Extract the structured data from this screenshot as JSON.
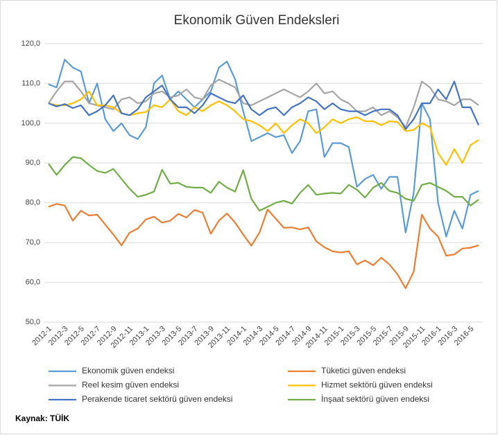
{
  "chart_data": {
    "type": "line",
    "title": "Ekonomik Güven Endeksleri",
    "source": "Kaynak: TÜİK",
    "categories": [
      "2012-1",
      null,
      "2012-3",
      null,
      "2012-5",
      null,
      "2012-7",
      null,
      "2012-9",
      null,
      "2012-11",
      null,
      "2013-1",
      null,
      "2013-3",
      null,
      "2013-5",
      null,
      "2013-7",
      null,
      "2013-9",
      null,
      "2013-11",
      null,
      "2014-1",
      null,
      "2014-3",
      null,
      "2014-5",
      null,
      "2014-7",
      null,
      "2014-9",
      null,
      "2014-11",
      null,
      "2015-1",
      null,
      "2015-3",
      null,
      "2015-5",
      null,
      "2015-7",
      null,
      "2015-9",
      null,
      "2015-11",
      null,
      "2016-1",
      null,
      "2016-3",
      null,
      "2016-5",
      null
    ],
    "ylim": [
      50,
      120
    ],
    "yticks": [
      {
        "value": 50,
        "label": "50,0"
      },
      {
        "value": 60,
        "label": "60,0"
      },
      {
        "value": 70,
        "label": "70,0"
      },
      {
        "value": 80,
        "label": "80,0"
      },
      {
        "value": 90,
        "label": "90,0"
      },
      {
        "value": 100,
        "label": "100,0"
      },
      {
        "value": 110,
        "label": "110,0"
      },
      {
        "value": 120,
        "label": "120,0"
      }
    ],
    "grid": true,
    "series": [
      {
        "name": "Ekonomik güven endeksi",
        "color": "#5b9bd5",
        "values": [
          109.8,
          109,
          116,
          114,
          113,
          105,
          110,
          101,
          98,
          100,
          97,
          96,
          99,
          110,
          112,
          106,
          108,
          106,
          104,
          106,
          108,
          114,
          115.5,
          111,
          103,
          95.5,
          96.5,
          97.5,
          96.5,
          97,
          92.5,
          95.5,
          103,
          103.5,
          91.5,
          95,
          95,
          94,
          84,
          86,
          87,
          83.5,
          86.5,
          86.5,
          72.5,
          82.5,
          105,
          101,
          80,
          71.5,
          78,
          73.5,
          82,
          83
        ]
      },
      {
        "name": "Tüketici güven endeksi",
        "color": "#ed7d31",
        "values": [
          79,
          79.7,
          79.3,
          75.5,
          78,
          76.8,
          77,
          74.5,
          72,
          69.3,
          72.5,
          73.5,
          75.8,
          76.5,
          75,
          75.5,
          77.2,
          76.3,
          78.2,
          77.5,
          72.2,
          75.5,
          77.3,
          75,
          72,
          69.2,
          72.5,
          78.3,
          76,
          73.7,
          73.8,
          73.3,
          73.8,
          70.3,
          68.8,
          67.8,
          67.5,
          67.8,
          64.5,
          65.5,
          64.3,
          66.2,
          64.5,
          62,
          58.5,
          62.7,
          77,
          73.5,
          71.5,
          66.7,
          67,
          68.5,
          68.7,
          69.3
        ]
      },
      {
        "name": "Reel kesim güven endeksi",
        "color": "#a5a5a5",
        "values": [
          105,
          108,
          110.5,
          110.5,
          108,
          105,
          104.5,
          104,
          103.5,
          106,
          106.5,
          105,
          105.5,
          107.5,
          108,
          106.5,
          107,
          108.5,
          106.5,
          106,
          109.5,
          111,
          110,
          109,
          105,
          104.5,
          105.5,
          106.5,
          107.5,
          108.5,
          107.5,
          106.5,
          108,
          110,
          107.5,
          108,
          106,
          105,
          103,
          103,
          104,
          102,
          103,
          101.5,
          99,
          104,
          110.5,
          109,
          106,
          105.5,
          104.5,
          106,
          106,
          104.5
        ]
      },
      {
        "name": "Hizmet sektörü güven endeksi",
        "color": "#ffc000",
        "values": [
          105,
          104.5,
          104.5,
          105,
          106,
          108,
          104.5,
          104.5,
          104,
          102.5,
          102,
          102.5,
          102.8,
          104.5,
          104,
          106,
          103,
          102,
          104,
          103,
          104.5,
          105.5,
          104.5,
          103,
          101,
          100.5,
          99.5,
          98,
          100,
          97.5,
          99.5,
          101,
          100,
          97.5,
          99,
          101,
          100,
          101,
          101.5,
          100.5,
          100.5,
          99.5,
          100.5,
          100.3,
          98,
          98.3,
          100,
          99,
          92.5,
          89.5,
          93.5,
          90,
          94.5,
          95.8
        ]
      },
      {
        "name": "Perakende ticaret sektörü güven endeksi",
        "color": "#4472c4",
        "values": [
          105,
          104.2,
          104.8,
          103.8,
          104.5,
          102,
          103,
          104.5,
          107,
          102.5,
          102,
          103.5,
          106.5,
          108,
          109.5,
          106,
          104,
          104,
          102.5,
          104.5,
          107.5,
          106.5,
          105.5,
          105,
          107,
          103.5,
          102,
          103.5,
          104,
          102,
          104,
          105,
          106.5,
          105.5,
          103.5,
          105,
          103.5,
          103,
          103,
          102,
          103,
          103.5,
          103.5,
          102,
          98.5,
          101,
          105,
          105,
          108.5,
          106,
          110.5,
          104,
          104,
          99.5
        ]
      },
      {
        "name": "İnşaat sektörü güven endeksi",
        "color": "#70ad47",
        "values": [
          89.8,
          87,
          89.5,
          91.5,
          91.2,
          89.5,
          88,
          87.5,
          88.5,
          86,
          83.5,
          81.5,
          82,
          82.8,
          88.3,
          84.8,
          85,
          84,
          83.8,
          83.8,
          82.5,
          85.3,
          83.8,
          82.8,
          88.2,
          81,
          78,
          79,
          80,
          80.5,
          79.8,
          82.5,
          84.5,
          82,
          82.3,
          82.5,
          82.3,
          84.5,
          83.3,
          81.3,
          83.8,
          85,
          83,
          82.5,
          81,
          80.5,
          84.5,
          85,
          84,
          83,
          81.5,
          81.5,
          79.3,
          80.8
        ]
      }
    ]
  }
}
